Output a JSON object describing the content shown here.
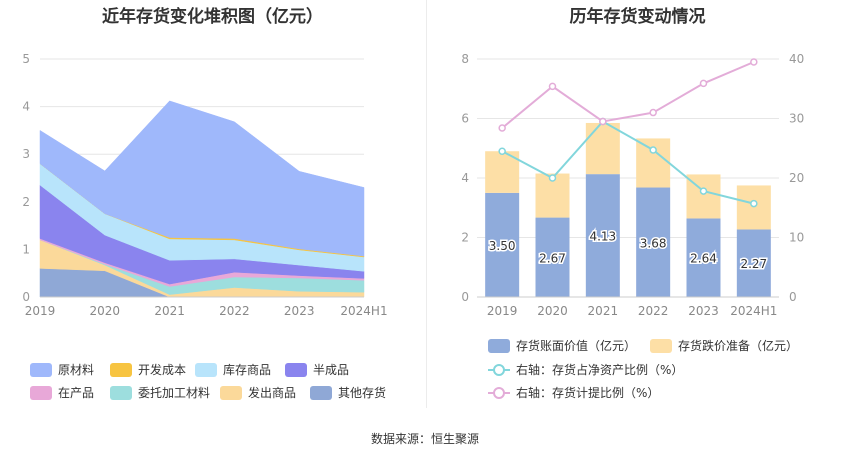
{
  "charts": {
    "left_title": "近年存货变化堆积图（亿元）",
    "right_title": "历年存货变动情况"
  },
  "source_text": "数据来源：恒生聚源",
  "chart_data": [
    {
      "type": "area",
      "stacked": true,
      "title": "近年存货变化堆积图（亿元）",
      "categories": [
        "2019",
        "2020",
        "2021",
        "2022",
        "2023",
        "2024H1"
      ],
      "ylim": [
        0,
        5
      ],
      "yticks": [
        "0",
        "1",
        "2",
        "3",
        "4",
        "5"
      ],
      "grid": true,
      "legend_position": "bottom",
      "series": [
        {
          "name": "其他存货",
          "color": "#8fa8d6",
          "values": [
            0.6,
            0.55,
            0.0,
            0.0,
            0.0,
            0.0
          ]
        },
        {
          "name": "发出商品",
          "color": "#fbd99a",
          "values": [
            0.6,
            0.12,
            0.05,
            0.2,
            0.12,
            0.1
          ]
        },
        {
          "name": "委托加工材料",
          "color": "#9ddede",
          "values": [
            0.0,
            0.02,
            0.17,
            0.22,
            0.28,
            0.25
          ]
        },
        {
          "name": "在产品",
          "color": "#e8a8d8",
          "values": [
            0.03,
            0.03,
            0.05,
            0.1,
            0.05,
            0.04
          ]
        },
        {
          "name": "半成品",
          "color": "#8a84ee",
          "values": [
            1.12,
            0.58,
            0.5,
            0.28,
            0.22,
            0.15
          ]
        },
        {
          "name": "库存商品",
          "color": "#b8e4fb",
          "values": [
            0.45,
            0.45,
            0.45,
            0.4,
            0.32,
            0.3
          ]
        },
        {
          "name": "开发成本",
          "color": "#f7c441",
          "values": [
            0.0,
            0.0,
            0.03,
            0.03,
            0.02,
            0.02
          ]
        },
        {
          "name": "原材料",
          "color": "#9fb8fb",
          "values": [
            0.7,
            0.9,
            2.87,
            2.45,
            1.63,
            1.44
          ]
        }
      ],
      "legend_order": [
        "原材料",
        "开发成本",
        "库存商品",
        "半成品",
        "在产品",
        "委托加工材料",
        "发出商品",
        "其他存货"
      ]
    },
    {
      "type": "bar",
      "stacked": true,
      "title": "历年存货变动情况",
      "categories": [
        "2019",
        "2020",
        "2021",
        "2022",
        "2023",
        "2024H1"
      ],
      "ylim": [
        0,
        8
      ],
      "yticks": [
        "0",
        "2",
        "4",
        "6",
        "8"
      ],
      "y2lim": [
        0,
        40
      ],
      "y2ticks": [
        "0",
        "10",
        "20",
        "30",
        "40"
      ],
      "grid": true,
      "legend_position": "bottom",
      "series": [
        {
          "name": "存货账面价值（亿元）",
          "type": "bar",
          "color": "#8fabdb",
          "values": [
            3.5,
            2.67,
            4.13,
            3.68,
            2.64,
            2.27
          ],
          "labels": [
            "3.50",
            "2.67",
            "4.13",
            "3.68",
            "2.64",
            "2.27"
          ]
        },
        {
          "name": "存货跌价准备（亿元）",
          "type": "bar",
          "color": "#fddfa6",
          "values": [
            1.4,
            1.48,
            1.72,
            1.65,
            1.48,
            1.48
          ]
        },
        {
          "name": "右轴：存货占净资产比例（%）",
          "type": "line",
          "axis": "right",
          "color": "#82d6dc",
          "values": [
            24.5,
            20.0,
            29.5,
            24.7,
            17.8,
            15.7
          ]
        },
        {
          "name": "右轴：存货计提比例（%）",
          "type": "line",
          "axis": "right",
          "color": "#e3acd8",
          "values": [
            28.4,
            35.4,
            29.5,
            31.0,
            35.9,
            39.5
          ]
        }
      ]
    }
  ]
}
